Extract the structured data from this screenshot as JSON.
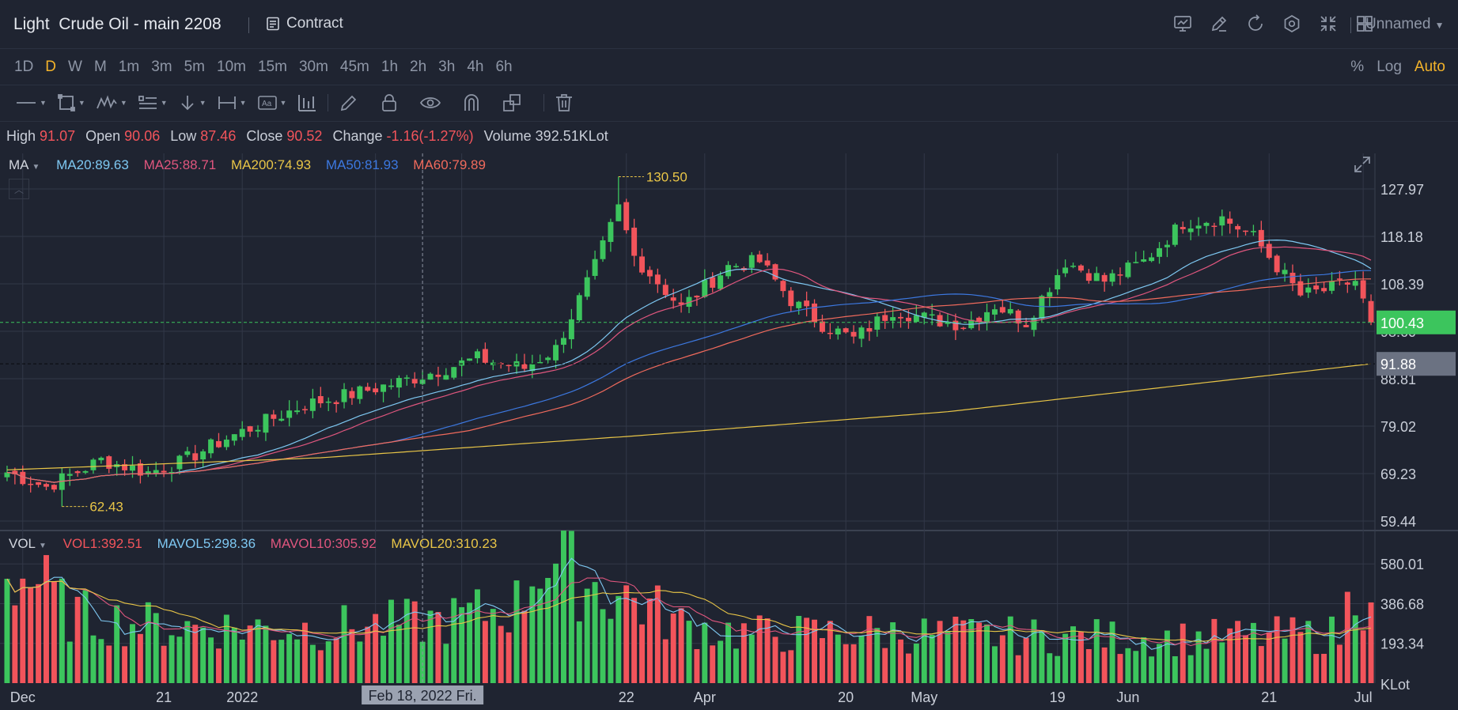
{
  "header": {
    "title": "Light  Crude Oil - main 2208",
    "contract_label": "Contract",
    "layout_label": "Unnamed",
    "icons": [
      "chart-icon",
      "edit-icon",
      "undo-icon",
      "settings-icon",
      "fullscreen-icon",
      "layout-icon"
    ]
  },
  "intervals": {
    "items": [
      "1D",
      "D",
      "W",
      "M",
      "1m",
      "3m",
      "5m",
      "10m",
      "15m",
      "30m",
      "45m",
      "1h",
      "2h",
      "3h",
      "4h",
      "6h"
    ],
    "active": "D"
  },
  "scale_options": {
    "percent": "%",
    "log": "Log",
    "auto": "Auto"
  },
  "ohlc": {
    "high_label": "High",
    "high": "91.07",
    "open_label": "Open",
    "open": "90.06",
    "low_label": "Low",
    "low": "87.46",
    "close_label": "Close",
    "close": "90.52",
    "change_label": "Change",
    "change": "-1.16(-1.27%)",
    "volume_label": "Volume",
    "volume": "392.51KLot"
  },
  "ma_legend": {
    "name": "MA",
    "items": [
      {
        "text": "MA20:89.63",
        "color": "#7ec8f2"
      },
      {
        "text": "MA25:88.71",
        "color": "#e0567e"
      },
      {
        "text": "MA200:74.93",
        "color": "#e8c547"
      },
      {
        "text": "MA50:81.93",
        "color": "#3c78e0"
      },
      {
        "text": "MA60:79.89",
        "color": "#f06a5c"
      }
    ]
  },
  "vol_legend": {
    "name": "VOL",
    "items": [
      {
        "text": "VOL1:392.51",
        "color": "#f2545b"
      },
      {
        "text": "MAVOL5:298.36",
        "color": "#7ec8f2"
      },
      {
        "text": "MAVOL10:305.92",
        "color": "#e0567e"
      },
      {
        "text": "MAVOL20:310.23",
        "color": "#e8c547"
      }
    ]
  },
  "colors": {
    "up": "#3cc55d",
    "down": "#f2545b",
    "background": "#1f2431",
    "grid": "#323848",
    "current": "#3cc55d",
    "crosshair": "#8d93a3"
  },
  "chart_data": [
    {
      "type": "candlestick",
      "price_ticks": [
        "127.97",
        "118.18",
        "108.39",
        "98.60",
        "88.81",
        "79.02",
        "69.23",
        "59.44"
      ],
      "ylim": [
        59.44,
        127.97
      ],
      "max_label": "130.50",
      "min_label": "62.43",
      "last_price": "100.43",
      "crosshair_price": "91.88",
      "x_labels": [
        "Dec",
        "21",
        "2022",
        "20",
        "Feb",
        "22",
        "Apr",
        "20",
        "May",
        "19",
        "Jun",
        "21",
        "Jul"
      ],
      "crosshair_date": "Feb 18, 2022 Fri.",
      "close_anchors": [
        [
          0,
          69.5
        ],
        [
          5,
          66.5
        ],
        [
          12,
          72
        ],
        [
          18,
          69.5
        ],
        [
          22,
          71.5
        ],
        [
          28,
          76.5
        ],
        [
          33,
          80
        ],
        [
          38,
          83.5
        ],
        [
          45,
          86
        ],
        [
          52,
          89
        ],
        [
          60,
          93
        ],
        [
          66,
          91
        ],
        [
          70,
          95
        ],
        [
          75,
          112
        ],
        [
          78,
          124
        ],
        [
          80,
          114
        ],
        [
          86,
          103.5
        ],
        [
          92,
          112
        ],
        [
          96,
          113
        ],
        [
          100,
          105
        ],
        [
          104,
          100
        ],
        [
          108,
          97
        ],
        [
          113,
          103
        ],
        [
          118,
          101
        ],
        [
          122,
          100
        ],
        [
          126,
          104
        ],
        [
          130,
          100.5
        ],
        [
          135,
          113
        ],
        [
          140,
          109
        ],
        [
          145,
          113
        ],
        [
          150,
          121
        ],
        [
          155,
          122
        ],
        [
          159,
          118
        ],
        [
          162,
          112
        ],
        [
          165,
          106
        ],
        [
          168,
          107
        ],
        [
          172,
          109
        ],
        [
          174,
          100.43
        ]
      ],
      "ma_series": [
        {
          "name": "MA20",
          "color": "#7ec8f2",
          "period": 20
        },
        {
          "name": "MA25",
          "color": "#e0567e",
          "period": 25
        },
        {
          "name": "MA50",
          "color": "#3c78e0",
          "period": 50
        },
        {
          "name": "MA60",
          "color": "#f06a5c",
          "period": 60
        },
        {
          "name": "MA200",
          "color": "#e8c547",
          "anchors": [
            [
              0,
              70
            ],
            [
              40,
              72.5
            ],
            [
              80,
              77
            ],
            [
              120,
              82
            ],
            [
              174,
              91.88
            ]
          ]
        }
      ]
    },
    {
      "type": "bar",
      "name": "VOL",
      "unit": "KLot",
      "volume_ticks": [
        "580.01",
        "386.68",
        "193.34"
      ],
      "ylim": [
        0,
        700
      ],
      "volume_anchors": [
        [
          0,
          560
        ],
        [
          4,
          520
        ],
        [
          8,
          350
        ],
        [
          20,
          290
        ],
        [
          40,
          280
        ],
        [
          56,
          320
        ],
        [
          65,
          400
        ],
        [
          68,
          650
        ],
        [
          72,
          560
        ],
        [
          76,
          480
        ],
        [
          80,
          430
        ],
        [
          86,
          300
        ],
        [
          95,
          250
        ],
        [
          110,
          260
        ],
        [
          130,
          240
        ],
        [
          150,
          230
        ],
        [
          170,
          250
        ],
        [
          172,
          520
        ],
        [
          174,
          392.51
        ]
      ]
    }
  ]
}
